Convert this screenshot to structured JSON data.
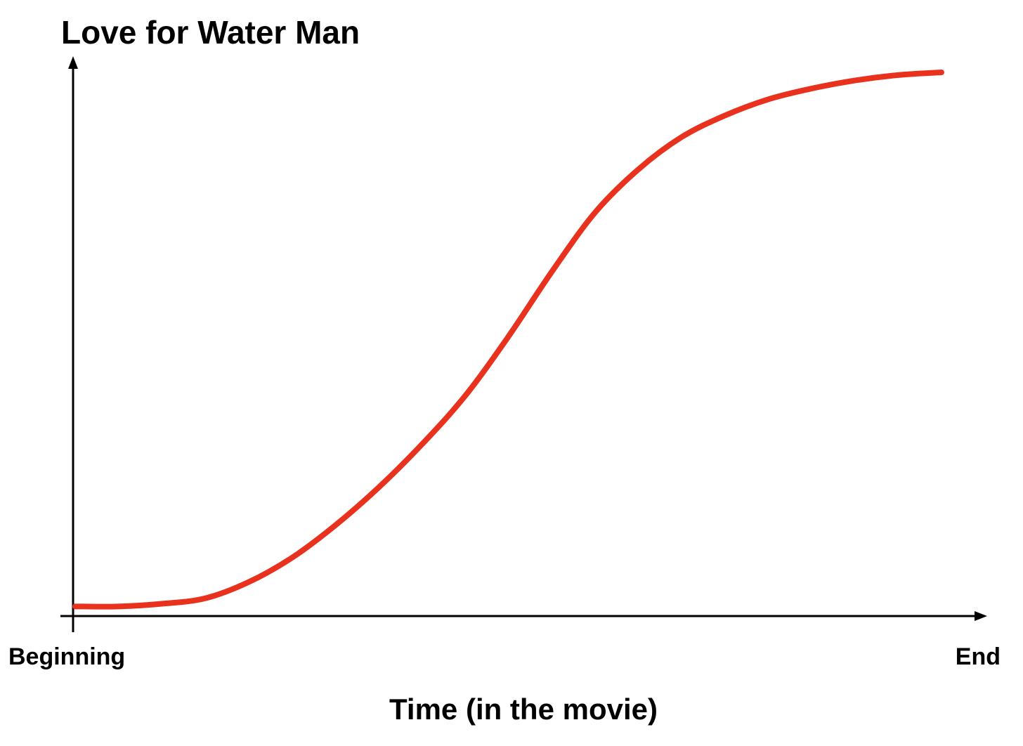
{
  "chart_data": {
    "type": "line",
    "title": "",
    "ylabel": "Love for Water Man",
    "xlabel": "Time (in the movie)",
    "x_tick_labels": [
      "Beginning",
      "End"
    ],
    "xlim": [
      0,
      1
    ],
    "ylim": [
      0,
      1
    ],
    "grid": false,
    "legend": "none",
    "series": [
      {
        "color": "#e8321e",
        "x": [
          0.0,
          0.05,
          0.1,
          0.15,
          0.2,
          0.25,
          0.3,
          0.35,
          0.4,
          0.45,
          0.5,
          0.55,
          0.6,
          0.65,
          0.7,
          0.75,
          0.8,
          0.85,
          0.9,
          0.95,
          1.0
        ],
        "y": [
          0.01,
          0.01,
          0.015,
          0.025,
          0.055,
          0.1,
          0.16,
          0.23,
          0.31,
          0.4,
          0.51,
          0.63,
          0.74,
          0.82,
          0.88,
          0.92,
          0.95,
          0.97,
          0.985,
          0.995,
          1.0
        ]
      }
    ]
  }
}
